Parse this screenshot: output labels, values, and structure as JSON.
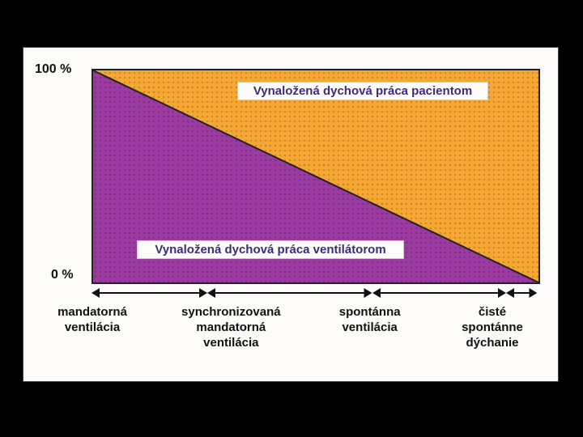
{
  "axis": {
    "top": "100 %",
    "bottom": "0 %"
  },
  "labels": {
    "upper": "Vynaložená dychová práca pacientom",
    "lower": "Vynaložená dychová práca ventilátorom"
  },
  "categories": [
    "mandatorná\nventilácia",
    "synchronizovaná\nmandatorná\nventilácia",
    "spontánna\nventilácia",
    "čisté\nspontánne\ndýchanie"
  ],
  "chart": {
    "type": "infographic",
    "left_color": "#9b3aa0",
    "right_color": "#f6a733",
    "background_color": "#fcfbfa",
    "border_color": "#222222",
    "dot_color_alpha": 0.22,
    "label_text_color": "#3b2d7a",
    "arrow_color": "#111111",
    "arrow_segments": [
      {
        "start_pct": 0,
        "end_pct": 26
      },
      {
        "start_pct": 26,
        "end_pct": 63
      },
      {
        "start_pct": 63,
        "end_pct": 93
      },
      {
        "start_pct": 93,
        "end_pct": 100
      }
    ],
    "category_fontsize": 15,
    "axis_fontsize": 16
  }
}
